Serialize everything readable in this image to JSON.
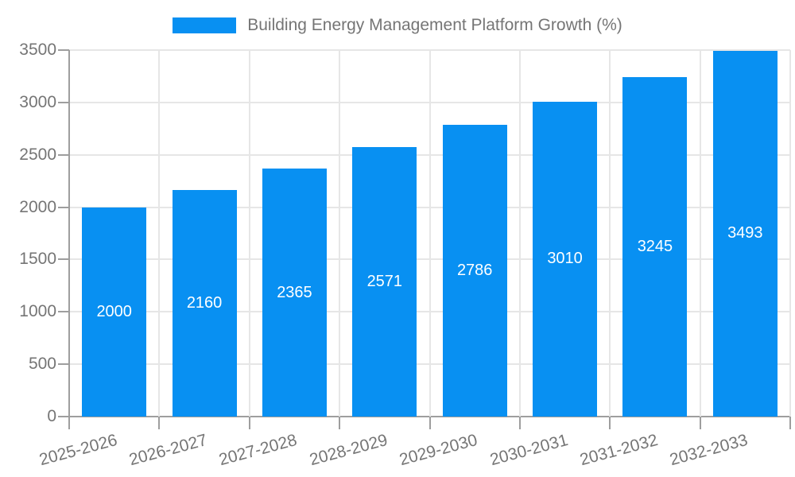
{
  "chart_data": {
    "type": "bar",
    "title": "Building Energy Management Platform Growth (%)",
    "categories": [
      "2025-2026",
      "2026-2027",
      "2027-2028",
      "2028-2029",
      "2029-2030",
      "2030-2031",
      "2031-2032",
      "2032-2033"
    ],
    "values": [
      2000,
      2160,
      2365,
      2571,
      2786,
      3010,
      3245,
      3493
    ],
    "xlabel": "",
    "ylabel": "",
    "ylim": [
      0,
      3500
    ],
    "yticks": [
      0,
      500,
      1000,
      1500,
      2000,
      2500,
      3000,
      3500
    ],
    "grid": true,
    "legend_position": "top-center",
    "x_label_rotation_deg": -15,
    "colors": {
      "bar": "#0890f2",
      "bar_label": "#ffffff",
      "axis_text": "#757575",
      "gridline": "#e6e6e6",
      "axis_line": "#9e9e9e",
      "background": "#ffffff"
    }
  }
}
